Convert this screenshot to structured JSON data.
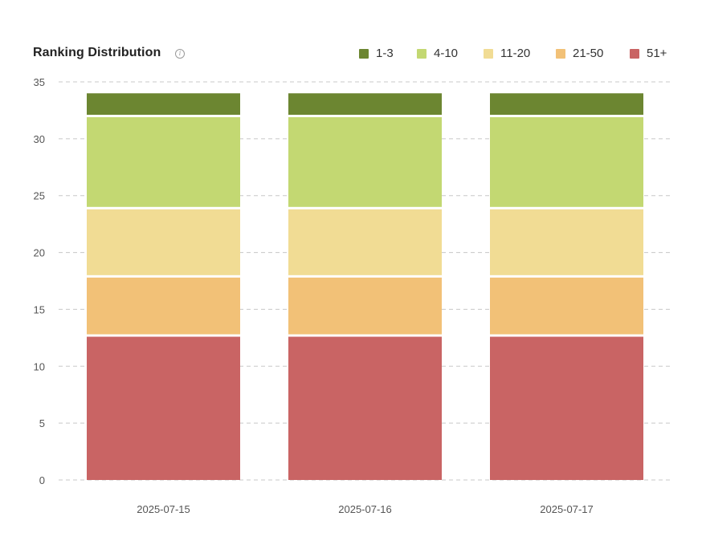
{
  "header": {
    "title": "Ranking Distribution",
    "info_icon": "info-icon"
  },
  "chart_data": {
    "type": "bar",
    "stacked": true,
    "title": "Ranking Distribution",
    "xlabel": "",
    "ylabel": "",
    "ylim": [
      0,
      35
    ],
    "yticks": [
      0,
      5,
      10,
      15,
      20,
      25,
      30,
      35
    ],
    "grid": true,
    "legend_position": "top-right",
    "categories": [
      "2025-07-15",
      "2025-07-16",
      "2025-07-17"
    ],
    "series": [
      {
        "name": "51+",
        "color": "#c96464",
        "values": [
          12.7,
          12.7,
          12.7
        ]
      },
      {
        "name": "21-50",
        "color": "#f2c177",
        "values": [
          5.2,
          5.2,
          5.2
        ]
      },
      {
        "name": "11-20",
        "color": "#f1dc94",
        "values": [
          6.0,
          6.0,
          6.0
        ]
      },
      {
        "name": "4-10",
        "color": "#c3d872",
        "values": [
          8.1,
          8.1,
          8.1
        ]
      },
      {
        "name": "1-3",
        "color": "#6c8631",
        "values": [
          2.1,
          2.1,
          2.1
        ]
      }
    ],
    "legend_order": [
      "1-3",
      "4-10",
      "11-20",
      "21-50",
      "51+"
    ]
  }
}
